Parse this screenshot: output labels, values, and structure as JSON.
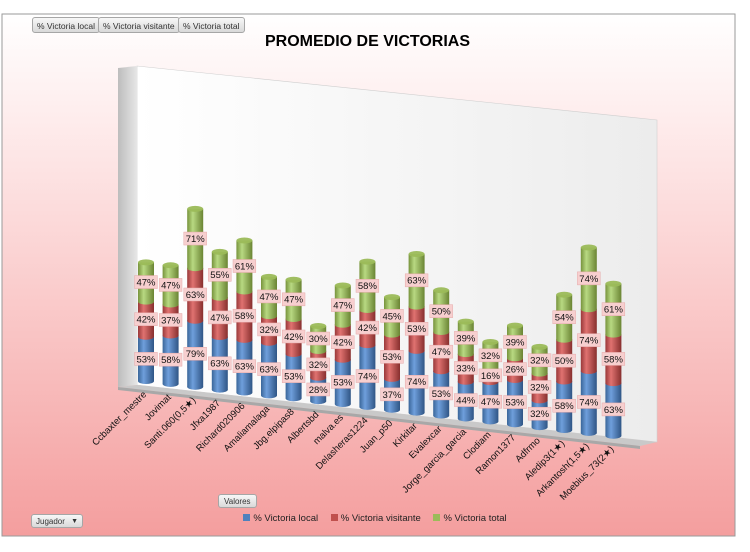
{
  "filters": {
    "local": "% Victoria local",
    "visitante": "% Victoria visitante",
    "total": "% Victoria total"
  },
  "values_button": "Valores",
  "axis_filter": {
    "label": "Jugador",
    "arrow": "▼"
  },
  "colors": {
    "local": "#4f81bd",
    "visitante": "#c0504d",
    "total": "#9bbb59"
  },
  "chart_data": {
    "type": "bar",
    "stacked": true,
    "three_d": true,
    "title": "PROMEDIO DE VICTORIAS",
    "categories": [
      "Ccbaxter_mestre",
      "Jovimat",
      "Santi.060(0,5★)",
      "Jfxa1987",
      "Richard020906",
      "Amaliamalaga",
      "Jbg.elpipas8",
      "Albertsbd",
      "malva.es",
      "Delasheras1224",
      "Juan_p50",
      "Kirkitar",
      "Evalexcar",
      "Jorge_garcia_garcia",
      "Clodiam",
      "Ramon1377",
      "Adfrmo",
      "Aledip3(1★)",
      "Arkantosh(1,5★)",
      "Moebius_73(2★)"
    ],
    "series": [
      {
        "name": "% Victoria local",
        "values": [
          53,
          58,
          79,
          63,
          63,
          63,
          53,
          28,
          53,
          74,
          37,
          74,
          53,
          44,
          47,
          53,
          32,
          58,
          74,
          63
        ]
      },
      {
        "name": "% Victoria visitante",
        "values": [
          42,
          37,
          63,
          47,
          58,
          32,
          42,
          32,
          42,
          42,
          53,
          53,
          47,
          33,
          16,
          26,
          32,
          50,
          74,
          58
        ]
      },
      {
        "name": "% Victoria total",
        "values": [
          47,
          47,
          71,
          55,
          61,
          47,
          47,
          30,
          47,
          58,
          45,
          63,
          50,
          39,
          32,
          39,
          32,
          54,
          74,
          61
        ]
      }
    ],
    "data_labels": [
      {
        "local": "53%",
        "visitante": "42%",
        "total": "47%"
      },
      {
        "local": "58%",
        "visitante": "37%",
        "total": "47%"
      },
      {
        "local": "79%",
        "visitante": "63%",
        "total": "71%"
      },
      {
        "local": "63%",
        "visitante": "47%",
        "total": "55%"
      },
      {
        "local": "63%",
        "visitante": "58%",
        "total": "61%"
      },
      {
        "local": "63%",
        "visitante": "32%",
        "total": "47%"
      },
      {
        "local": "53%",
        "visitante": "42%",
        "total": "47%"
      },
      {
        "local": "28%",
        "visitante": "32%",
        "total": "30%"
      },
      {
        "local": "53%",
        "visitante": "42%",
        "total": "47%"
      },
      {
        "local": "74%",
        "visitante": "42%",
        "total": "58%"
      },
      {
        "local": "37%",
        "visitante": "53%",
        "total": "45%"
      },
      {
        "local": "74%",
        "visitante": "53%",
        "total": "63%"
      },
      {
        "local": "53%",
        "visitante": "47%",
        "total": "50%"
      },
      {
        "local": "44%",
        "visitante": "33%",
        "total": "39%"
      },
      {
        "local": "47%",
        "visitante": "16%",
        "total": "32%"
      },
      {
        "local": "53%",
        "visitante": "26%",
        "total": "39%"
      },
      {
        "local": "32%",
        "visitante": "32%",
        "total": "32%"
      },
      {
        "local": "58%",
        "visitante": "50%",
        "total": "54%"
      },
      {
        "local": "74%",
        "visitante": "74%",
        "total": "74%"
      },
      {
        "local": "63%",
        "visitante": "58%",
        "total": "61%"
      }
    ],
    "legend_position": "bottom",
    "grid": false
  }
}
